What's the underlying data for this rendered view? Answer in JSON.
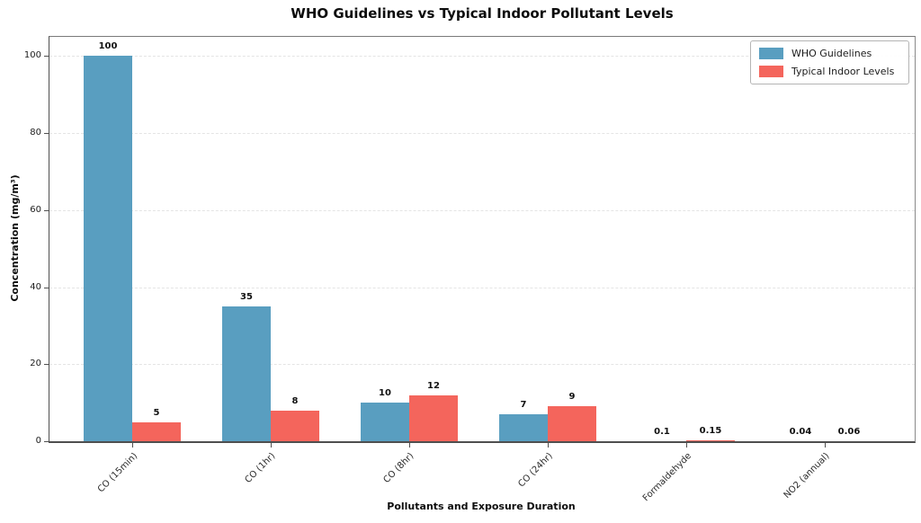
{
  "chart_data": {
    "type": "bar",
    "title": "WHO Guidelines vs Typical Indoor Pollutant Levels",
    "xlabel": "Pollutants and Exposure Duration",
    "ylabel": "Concentration (mg/m³)",
    "categories": [
      "CO (15min)",
      "CO (1hr)",
      "CO (8hr)",
      "CO (24hr)",
      "Formaldehyde",
      "NO2 (annual)"
    ],
    "series": [
      {
        "name": "WHO Guidelines",
        "color": "#599EC0",
        "values": [
          100,
          35,
          10,
          7,
          0.1,
          0.04
        ]
      },
      {
        "name": "Typical Indoor Levels",
        "color": "#F4655C",
        "values": [
          5,
          8,
          12,
          9,
          0.15,
          0.06
        ]
      }
    ],
    "yticks": [
      0,
      20,
      40,
      60,
      80,
      100
    ],
    "ylim": [
      0,
      105
    ],
    "grid": "horizontal-dashed",
    "legend_position": "upper-right"
  }
}
